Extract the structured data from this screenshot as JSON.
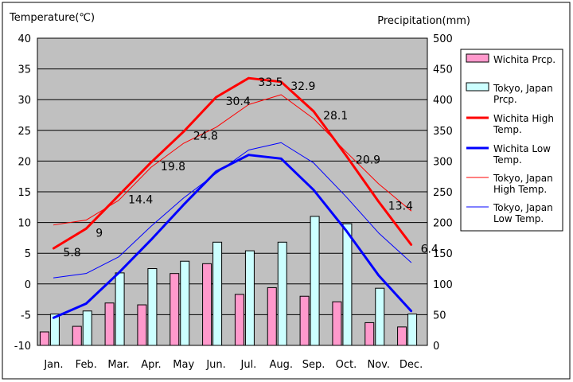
{
  "chart_data": {
    "type": "bar+line",
    "left_axis_label": "Temperature(℃)",
    "right_axis_label": "Precipitation(mm)",
    "categories": [
      "Jan.",
      "Feb.",
      "Mar.",
      "Apr.",
      "May",
      "Jun.",
      "Jul.",
      "Aug.",
      "Sep.",
      "Oct.",
      "Nov.",
      "Dec."
    ],
    "left_ylim": [
      -10,
      40
    ],
    "left_ticks": [
      -10,
      -5,
      0,
      5,
      10,
      15,
      20,
      25,
      30,
      35,
      40
    ],
    "right_ylim": [
      0,
      500
    ],
    "right_ticks": [
      0,
      50,
      100,
      150,
      200,
      250,
      300,
      350,
      400,
      450,
      500
    ],
    "grid": "horizontal",
    "plot_background": "#c0c0c0",
    "legend_position": "right",
    "bar_series": [
      {
        "name": "Wichita Prcp.",
        "color": "#ff99cc",
        "axis": "right",
        "values": [
          22,
          31,
          69,
          66,
          117,
          133,
          83,
          94,
          80,
          71,
          37,
          30
        ]
      },
      {
        "name": "Tokyo, Japan Prcp.",
        "color": "#ccffff",
        "axis": "right",
        "values": [
          51,
          56,
          118,
          125,
          137,
          168,
          154,
          168,
          210,
          198,
          93,
          51
        ]
      }
    ],
    "line_series": [
      {
        "name": "Wichita High Temp.",
        "color": "#ff0000",
        "width": 3,
        "axis": "left",
        "values": [
          5.8,
          9,
          14.4,
          19.8,
          24.8,
          30.4,
          33.5,
          32.9,
          28.1,
          20.9,
          13.4,
          6.4
        ],
        "value_labels": [
          "5.8",
          "9",
          "14.4",
          "19.8",
          "24.8",
          "30.4",
          "33.5",
          "32.9",
          "28.1",
          "20.9",
          "13.4",
          "6.4"
        ]
      },
      {
        "name": "Wichita Low Temp.",
        "color": "#0000ff",
        "width": 3,
        "axis": "left",
        "values": [
          -5.5,
          -3.2,
          1.8,
          7.2,
          12.9,
          18.3,
          21.0,
          20.4,
          15.3,
          8.7,
          1.4,
          -4.4
        ]
      },
      {
        "name": "Tokyo, Japan High Temp.",
        "color": "#ff0000",
        "width": 1,
        "axis": "left",
        "values": [
          9.6,
          10.4,
          13.6,
          19.0,
          22.9,
          25.5,
          29.2,
          30.8,
          26.9,
          21.5,
          16.3,
          11.9
        ]
      },
      {
        "name": "Tokyo, Japan Low Temp.",
        "color": "#0000ff",
        "width": 1,
        "axis": "left",
        "values": [
          1.0,
          1.7,
          4.4,
          9.4,
          14.0,
          18.0,
          21.8,
          23.0,
          19.7,
          14.2,
          8.3,
          3.5
        ]
      }
    ]
  }
}
